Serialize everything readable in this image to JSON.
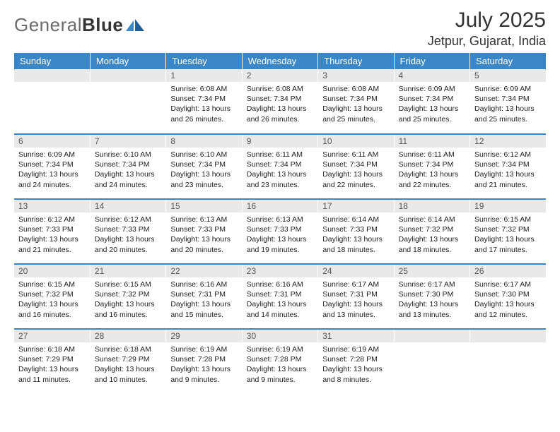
{
  "logo": {
    "word1": "General",
    "word2": "Blue"
  },
  "title": {
    "month": "July 2025",
    "location": "Jetpur, Gujarat, India"
  },
  "colors": {
    "header_bg": "#3b86c8",
    "header_text": "#ffffff",
    "daynum_bg": "#e9e9e9",
    "daynum_text": "#555555",
    "body_text": "#222222",
    "divider": "#3b86c8",
    "logo_gray": "#6b6b6b",
    "logo_dark": "#333333"
  },
  "weekdays": [
    "Sunday",
    "Monday",
    "Tuesday",
    "Wednesday",
    "Thursday",
    "Friday",
    "Saturday"
  ],
  "weeks": [
    [
      null,
      null,
      {
        "n": "1",
        "rise": "6:08 AM",
        "set": "7:34 PM",
        "daymin": "26"
      },
      {
        "n": "2",
        "rise": "6:08 AM",
        "set": "7:34 PM",
        "daymin": "26"
      },
      {
        "n": "3",
        "rise": "6:08 AM",
        "set": "7:34 PM",
        "daymin": "25"
      },
      {
        "n": "4",
        "rise": "6:09 AM",
        "set": "7:34 PM",
        "daymin": "25"
      },
      {
        "n": "5",
        "rise": "6:09 AM",
        "set": "7:34 PM",
        "daymin": "25"
      }
    ],
    [
      {
        "n": "6",
        "rise": "6:09 AM",
        "set": "7:34 PM",
        "daymin": "24"
      },
      {
        "n": "7",
        "rise": "6:10 AM",
        "set": "7:34 PM",
        "daymin": "24"
      },
      {
        "n": "8",
        "rise": "6:10 AM",
        "set": "7:34 PM",
        "daymin": "23"
      },
      {
        "n": "9",
        "rise": "6:11 AM",
        "set": "7:34 PM",
        "daymin": "23"
      },
      {
        "n": "10",
        "rise": "6:11 AM",
        "set": "7:34 PM",
        "daymin": "22"
      },
      {
        "n": "11",
        "rise": "6:11 AM",
        "set": "7:34 PM",
        "daymin": "22"
      },
      {
        "n": "12",
        "rise": "6:12 AM",
        "set": "7:34 PM",
        "daymin": "21"
      }
    ],
    [
      {
        "n": "13",
        "rise": "6:12 AM",
        "set": "7:33 PM",
        "daymin": "21"
      },
      {
        "n": "14",
        "rise": "6:12 AM",
        "set": "7:33 PM",
        "daymin": "20"
      },
      {
        "n": "15",
        "rise": "6:13 AM",
        "set": "7:33 PM",
        "daymin": "20"
      },
      {
        "n": "16",
        "rise": "6:13 AM",
        "set": "7:33 PM",
        "daymin": "19"
      },
      {
        "n": "17",
        "rise": "6:14 AM",
        "set": "7:33 PM",
        "daymin": "18"
      },
      {
        "n": "18",
        "rise": "6:14 AM",
        "set": "7:32 PM",
        "daymin": "18"
      },
      {
        "n": "19",
        "rise": "6:15 AM",
        "set": "7:32 PM",
        "daymin": "17"
      }
    ],
    [
      {
        "n": "20",
        "rise": "6:15 AM",
        "set": "7:32 PM",
        "daymin": "16"
      },
      {
        "n": "21",
        "rise": "6:15 AM",
        "set": "7:32 PM",
        "daymin": "16"
      },
      {
        "n": "22",
        "rise": "6:16 AM",
        "set": "7:31 PM",
        "daymin": "15"
      },
      {
        "n": "23",
        "rise": "6:16 AM",
        "set": "7:31 PM",
        "daymin": "14"
      },
      {
        "n": "24",
        "rise": "6:17 AM",
        "set": "7:31 PM",
        "daymin": "13"
      },
      {
        "n": "25",
        "rise": "6:17 AM",
        "set": "7:30 PM",
        "daymin": "13"
      },
      {
        "n": "26",
        "rise": "6:17 AM",
        "set": "7:30 PM",
        "daymin": "12"
      }
    ],
    [
      {
        "n": "27",
        "rise": "6:18 AM",
        "set": "7:29 PM",
        "daymin": "11"
      },
      {
        "n": "28",
        "rise": "6:18 AM",
        "set": "7:29 PM",
        "daymin": "10"
      },
      {
        "n": "29",
        "rise": "6:19 AM",
        "set": "7:28 PM",
        "daymin": "9"
      },
      {
        "n": "30",
        "rise": "6:19 AM",
        "set": "7:28 PM",
        "daymin": "9"
      },
      {
        "n": "31",
        "rise": "6:19 AM",
        "set": "7:28 PM",
        "daymin": "8"
      },
      null,
      null
    ]
  ],
  "labels": {
    "sunrise": "Sunrise:",
    "sunset": "Sunset:",
    "daylight_prefix": "Daylight: 13 hours and",
    "daylight_suffix": "minutes."
  }
}
